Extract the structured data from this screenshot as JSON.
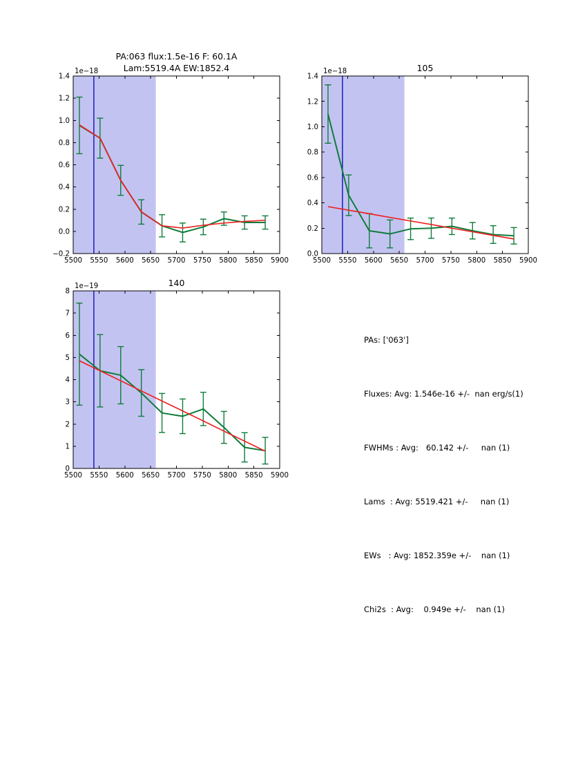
{
  "figure": {
    "background": "#ffffff",
    "colors": {
      "shade": "#c3c3f2",
      "vline": "#0000bb",
      "data_line": "#0e7c39",
      "fit_line": "#ee2222",
      "frame": "#000000",
      "text": "#000000"
    }
  },
  "stats_panel": {
    "lines": [
      "PAs: ['063']",
      "Fluxes: Avg: 1.546e-16 +/-  nan erg/s(1)",
      "FWHMs : Avg:   60.142 +/-     nan (1)",
      "Lams  : Avg: 5519.421 +/-     nan (1)",
      "EWs   : Avg: 1852.359e +/-    nan (1)",
      "Chi2s  : Avg:    0.949e +/-    nan (1)"
    ]
  },
  "chart_data": [
    {
      "type": "line",
      "title_lines": [
        "PA:063 flux:1.5e-16 F: 60.1A",
        "Lam:5519.4A EW:1852.4"
      ],
      "offset_label": "1e−18",
      "xlim": [
        5500,
        5900
      ],
      "ylim": [
        -0.2,
        1.4
      ],
      "xticks": [
        5500,
        5550,
        5600,
        5650,
        5700,
        5750,
        5800,
        5850,
        5900
      ],
      "xtick_labels": [
        "5500",
        "5550",
        "5600",
        "5650",
        "5700",
        "5750",
        "5800",
        "5850",
        "5900"
      ],
      "yticks": [
        -0.2,
        0.0,
        0.2,
        0.4,
        0.6,
        0.8,
        1.0,
        1.2,
        1.4
      ],
      "ytick_labels": [
        "−0.2",
        "0.0",
        "0.2",
        "0.4",
        "0.6",
        "0.8",
        "1.0",
        "1.2",
        "1.4"
      ],
      "grid": false,
      "shaded_region": [
        5500,
        5660
      ],
      "vline_x": 5540,
      "x": [
        5512,
        5552,
        5592,
        5632,
        5672,
        5712,
        5752,
        5792,
        5832,
        5872
      ],
      "series": [
        {
          "name": "spectrum",
          "values": [
            0.955,
            0.84,
            0.46,
            0.175,
            0.05,
            -0.01,
            0.04,
            0.115,
            0.08,
            0.08
          ],
          "errors": [
            0.255,
            0.18,
            0.135,
            0.11,
            0.1,
            0.085,
            0.07,
            0.06,
            0.06,
            0.06
          ]
        },
        {
          "name": "fit",
          "values": [
            0.96,
            0.84,
            0.46,
            0.175,
            0.05,
            0.03,
            0.055,
            0.075,
            0.09,
            0.1
          ]
        }
      ]
    },
    {
      "type": "line",
      "title_lines": [
        "105"
      ],
      "offset_label": "1e−18",
      "xlim": [
        5500,
        5900
      ],
      "ylim": [
        0.0,
        1.4
      ],
      "xticks": [
        5500,
        5550,
        5600,
        5650,
        5700,
        5750,
        5800,
        5850,
        5900
      ],
      "xtick_labels": [
        "5500",
        "5550",
        "5600",
        "5650",
        "5700",
        "5750",
        "5800",
        "5850",
        "5900"
      ],
      "yticks": [
        0.0,
        0.2,
        0.4,
        0.6,
        0.8,
        1.0,
        1.2,
        1.4
      ],
      "ytick_labels": [
        "0.0",
        "0.2",
        "0.4",
        "0.6",
        "0.8",
        "1.0",
        "1.2",
        "1.4"
      ],
      "grid": false,
      "shaded_region": [
        5500,
        5660
      ],
      "vline_x": 5540,
      "x": [
        5512,
        5552,
        5592,
        5632,
        5672,
        5712,
        5752,
        5792,
        5832,
        5872
      ],
      "series": [
        {
          "name": "spectrum",
          "values": [
            1.1,
            0.46,
            0.18,
            0.155,
            0.195,
            0.2,
            0.215,
            0.18,
            0.15,
            0.14
          ],
          "errors": [
            0.23,
            0.16,
            0.135,
            0.11,
            0.085,
            0.08,
            0.065,
            0.065,
            0.07,
            0.065
          ]
        },
        {
          "name": "fit",
          "values": [
            0.37,
            0.342,
            0.314,
            0.285,
            0.257,
            0.229,
            0.2,
            0.172,
            0.143,
            0.115
          ]
        }
      ]
    },
    {
      "type": "line",
      "title_lines": [
        "140"
      ],
      "offset_label": "1e−19",
      "xlim": [
        5500,
        5900
      ],
      "ylim": [
        0,
        8
      ],
      "xticks": [
        5500,
        5550,
        5600,
        5650,
        5700,
        5750,
        5800,
        5850,
        5900
      ],
      "xtick_labels": [
        "5500",
        "5550",
        "5600",
        "5650",
        "5700",
        "5750",
        "5800",
        "5850",
        "5900"
      ],
      "yticks": [
        0,
        1,
        2,
        3,
        4,
        5,
        6,
        7,
        8
      ],
      "ytick_labels": [
        "0",
        "1",
        "2",
        "3",
        "4",
        "5",
        "6",
        "7",
        "8"
      ],
      "grid": false,
      "shaded_region": [
        5500,
        5660
      ],
      "vline_x": 5540,
      "x": [
        5512,
        5552,
        5592,
        5632,
        5672,
        5712,
        5752,
        5792,
        5832,
        5872
      ],
      "series": [
        {
          "name": "spectrum",
          "values": [
            5.15,
            4.4,
            4.2,
            3.4,
            2.5,
            2.35,
            2.68,
            1.85,
            0.95,
            0.8
          ],
          "errors": [
            2.3,
            1.63,
            1.29,
            1.05,
            0.88,
            0.78,
            0.75,
            0.72,
            0.66,
            0.6
          ]
        },
        {
          "name": "fit",
          "values": [
            4.85,
            4.4,
            3.95,
            3.49,
            3.04,
            2.59,
            2.14,
            1.68,
            1.23,
            0.78
          ]
        }
      ]
    }
  ]
}
